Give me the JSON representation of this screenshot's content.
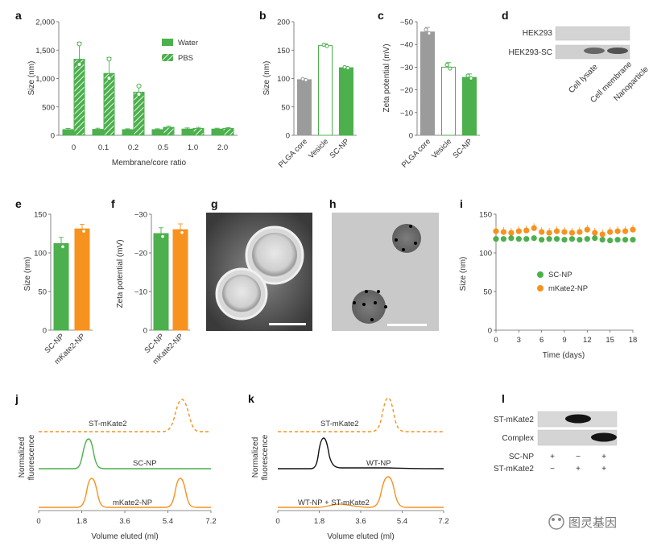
{
  "colors": {
    "green": "#4cb04d",
    "orange": "#f7921e",
    "gray": "#9b9b9b",
    "black": "#111111",
    "axis": "#666666"
  },
  "panels": {
    "a": "a",
    "b": "b",
    "c": "c",
    "d": "d",
    "e": "e",
    "f": "f",
    "g": "g",
    "h": "h",
    "i": "i",
    "j": "j",
    "k": "k",
    "l": "l"
  },
  "chart_data": {
    "a": {
      "type": "bar",
      "ylabel": "Size (nm)",
      "xlabel": "Membrane/core ratio",
      "ylim": [
        0,
        2000
      ],
      "yticks": [
        "0",
        "500",
        "1,000",
        "1,500",
        "2,000"
      ],
      "categories": [
        "0",
        "0.1",
        "0.2",
        "0.5",
        "1.0",
        "2.0"
      ],
      "series": [
        {
          "name": "Water",
          "values": [
            100,
            105,
            100,
            100,
            110,
            110
          ],
          "err": [
            20,
            20,
            15,
            15,
            20,
            15
          ]
        },
        {
          "name": "PBS",
          "values": [
            1340,
            1090,
            760,
            140,
            120,
            120
          ],
          "err": [
            300,
            280,
            120,
            20,
            20,
            15
          ]
        }
      ]
    },
    "b": {
      "type": "bar",
      "ylabel": "Size (nm)",
      "ylim": [
        0,
        200
      ],
      "yticks": [
        "0",
        "50",
        "100",
        "150",
        "200"
      ],
      "categories": [
        "PLGA core",
        "Vesicle",
        "SC-NP"
      ],
      "values": [
        98,
        158,
        119
      ],
      "err": [
        2,
        3,
        2
      ]
    },
    "c": {
      "type": "bar",
      "ylabel": "Zeta potential (mV)",
      "ylim": [
        0,
        -50
      ],
      "yticks": [
        "0",
        "−10",
        "−20",
        "−30",
        "−40",
        "−50"
      ],
      "categories": [
        "PLGA core",
        "Vesicle",
        "SC-NP"
      ],
      "values": [
        -45.5,
        -30,
        -25.5
      ],
      "err": [
        2,
        2,
        1.5
      ]
    },
    "d": {
      "type": "table",
      "rows": [
        "HEK293",
        "HEK293-SC"
      ],
      "columns": [
        "Cell lysate",
        "Cell membrane",
        "Nanoparticle"
      ]
    },
    "e": {
      "type": "bar",
      "ylabel": "Size (nm)",
      "ylim": [
        0,
        150
      ],
      "yticks": [
        "0",
        "50",
        "100",
        "150"
      ],
      "categories": [
        "SC-NP",
        "mKate2-NP"
      ],
      "values": [
        112,
        131
      ],
      "err": [
        8,
        6
      ]
    },
    "f": {
      "type": "bar",
      "ylabel": "Zeta potential (mV)",
      "ylim": [
        0,
        -30
      ],
      "yticks": [
        "0",
        "−10",
        "−20",
        "−30"
      ],
      "categories": [
        "SC-NP",
        "mKate2-NP"
      ],
      "values": [
        -25,
        -26
      ],
      "err": [
        1.5,
        1.5
      ]
    },
    "i": {
      "type": "scatter",
      "ylabel": "Size (nm)",
      "xlabel": "Time (days)",
      "ylim": [
        0,
        150
      ],
      "xlim": [
        0,
        18
      ],
      "yticks": [
        "0",
        "50",
        "100",
        "150"
      ],
      "xticks": [
        "0",
        "3",
        "6",
        "9",
        "12",
        "15",
        "18"
      ],
      "series": [
        {
          "name": "SC-NP",
          "x": [
            0,
            1,
            2,
            3,
            4,
            5,
            6,
            7,
            8,
            9,
            10,
            11,
            12,
            13,
            14,
            15,
            16,
            17,
            18
          ],
          "values": [
            118,
            118,
            119,
            118,
            118,
            119,
            117,
            118,
            118,
            117,
            118,
            117,
            118,
            119,
            117,
            116,
            117,
            117,
            117
          ]
        },
        {
          "name": "mKate2-NP",
          "x": [
            0,
            1,
            2,
            3,
            4,
            5,
            6,
            7,
            8,
            9,
            10,
            11,
            12,
            13,
            14,
            15,
            16,
            17,
            18
          ],
          "values": [
            128,
            127,
            126,
            128,
            129,
            132,
            127,
            126,
            128,
            127,
            126,
            127,
            130,
            126,
            124,
            127,
            128,
            128,
            130
          ]
        }
      ]
    },
    "j": {
      "type": "line",
      "ylabel": "Normalized fluorescence",
      "xlabel": "Volume eluted (ml)",
      "xlim": [
        0,
        7.2
      ],
      "xticks": [
        "0",
        "1.8",
        "3.6",
        "5.4",
        "7.2"
      ],
      "traces": [
        "ST-mKate2",
        "SC-NP",
        "mKate2-NP"
      ]
    },
    "k": {
      "type": "line",
      "ylabel": "Normalized fluorescence",
      "xlabel": "Volume eluted (ml)",
      "xlim": [
        0,
        7.2
      ],
      "xticks": [
        "0",
        "1.8",
        "3.6",
        "5.4",
        "7.2"
      ],
      "traces": [
        "ST-mKate2",
        "WT-NP",
        "WT-NP + ST-mKate2"
      ]
    },
    "l": {
      "type": "table",
      "rows": [
        "ST-mKate2",
        "Complex"
      ],
      "conditions": [
        {
          "name": "SC-NP",
          "marks": [
            "+",
            "−",
            "+"
          ]
        },
        {
          "name": "ST-mKate2",
          "marks": [
            "−",
            "+",
            "+"
          ]
        }
      ]
    }
  },
  "watermark": "图灵基因"
}
